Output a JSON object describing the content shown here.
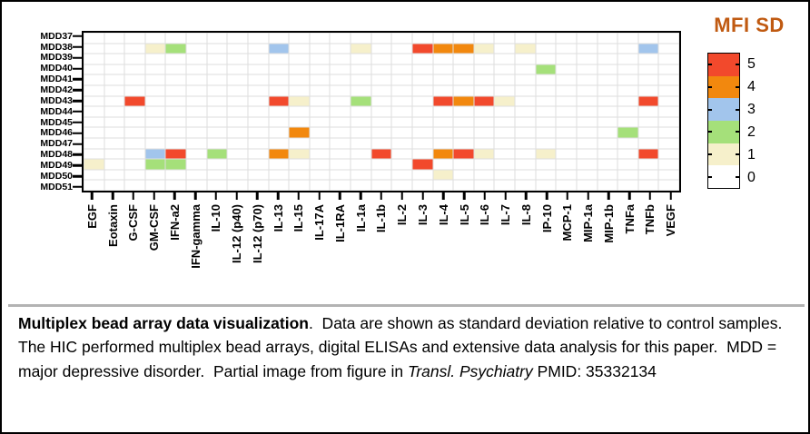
{
  "chart_data": {
    "type": "heatmap",
    "rows": [
      "MDD37",
      "MDD38",
      "MDD39",
      "MDD40",
      "MDD41",
      "MDD42",
      "MDD43",
      "MDD44",
      "MDD45",
      "MDD46",
      "MDD47",
      "MDD48",
      "MDD49",
      "MDD50",
      "MDD51"
    ],
    "columns": [
      "EGF",
      "Eotaxin",
      "G-CSF",
      "GM-CSF",
      "IFN-a2",
      "IFN-gamma",
      "IL-10",
      "IL-12 (p40)",
      "IL-12 (p70)",
      "IL-13",
      "IL-15",
      "IL-17A",
      "IL-1RA",
      "IL-1a",
      "IL-1b",
      "IL-2",
      "IL-3",
      "IL-4",
      "IL-5",
      "IL-6",
      "IL-7",
      "IL-8",
      "IP-10",
      "MCP-1",
      "MIP-1a",
      "MIP-1b",
      "TNFa",
      "TNFb",
      "VEGF"
    ],
    "default_value": 0,
    "cells": [
      {
        "row": "MDD38",
        "col": "GM-CSF",
        "value": 1
      },
      {
        "row": "MDD38",
        "col": "IFN-a2",
        "value": 2
      },
      {
        "row": "MDD38",
        "col": "IL-13",
        "value": 3
      },
      {
        "row": "MDD38",
        "col": "IL-1a",
        "value": 1
      },
      {
        "row": "MDD38",
        "col": "IL-3",
        "value": 5
      },
      {
        "row": "MDD38",
        "col": "IL-4",
        "value": 4
      },
      {
        "row": "MDD38",
        "col": "IL-5",
        "value": 4
      },
      {
        "row": "MDD38",
        "col": "IL-6",
        "value": 1
      },
      {
        "row": "MDD38",
        "col": "IL-8",
        "value": 1
      },
      {
        "row": "MDD38",
        "col": "TNFb",
        "value": 3
      },
      {
        "row": "MDD40",
        "col": "IP-10",
        "value": 2
      },
      {
        "row": "MDD43",
        "col": "G-CSF",
        "value": 5
      },
      {
        "row": "MDD43",
        "col": "IL-13",
        "value": 5
      },
      {
        "row": "MDD43",
        "col": "IL-15",
        "value": 1
      },
      {
        "row": "MDD43",
        "col": "IL-1a",
        "value": 2
      },
      {
        "row": "MDD43",
        "col": "IL-4",
        "value": 5
      },
      {
        "row": "MDD43",
        "col": "IL-5",
        "value": 4
      },
      {
        "row": "MDD43",
        "col": "IL-6",
        "value": 5
      },
      {
        "row": "MDD43",
        "col": "IL-7",
        "value": 1
      },
      {
        "row": "MDD43",
        "col": "TNFb",
        "value": 5
      },
      {
        "row": "MDD46",
        "col": "IL-15",
        "value": 4
      },
      {
        "row": "MDD46",
        "col": "TNFa",
        "value": 2
      },
      {
        "row": "MDD48",
        "col": "GM-CSF",
        "value": 3
      },
      {
        "row": "MDD48",
        "col": "IFN-a2",
        "value": 5
      },
      {
        "row": "MDD48",
        "col": "IL-10",
        "value": 2
      },
      {
        "row": "MDD48",
        "col": "IL-13",
        "value": 4
      },
      {
        "row": "MDD48",
        "col": "IL-15",
        "value": 1
      },
      {
        "row": "MDD48",
        "col": "IL-1b",
        "value": 5
      },
      {
        "row": "MDD48",
        "col": "IL-4",
        "value": 4
      },
      {
        "row": "MDD48",
        "col": "IL-5",
        "value": 5
      },
      {
        "row": "MDD48",
        "col": "IL-6",
        "value": 1
      },
      {
        "row": "MDD48",
        "col": "IP-10",
        "value": 1
      },
      {
        "row": "MDD48",
        "col": "TNFb",
        "value": 5
      },
      {
        "row": "MDD49",
        "col": "EGF",
        "value": 1
      },
      {
        "row": "MDD49",
        "col": "GM-CSF",
        "value": 2
      },
      {
        "row": "MDD49",
        "col": "IFN-a2",
        "value": 2
      },
      {
        "row": "MDD49",
        "col": "IL-3",
        "value": 5
      },
      {
        "row": "MDD50",
        "col": "IL-4",
        "value": 1
      }
    ],
    "legend": {
      "title": "MFI SD",
      "title_color": "#C05A11",
      "levels": [
        "5",
        "4",
        "3",
        "2",
        "1",
        "0"
      ],
      "colors": {
        "0": "#FFFFFF",
        "1": "#F6F0CB",
        "2": "#A5E07A",
        "3": "#A2C5EC",
        "4": "#F2880E",
        "5": "#F2492C"
      }
    }
  },
  "caption": {
    "bold": "Multiplex bead array data visualization",
    "text_1": ".  Data are shown as standard deviation relative to control samples.  The HIC performed multiplex bead arrays, digital ELISAs and extensive data analysis for this paper.  MDD = major depressive disorder.  Partial image from figure in ",
    "italic": "Transl. Psychiatry",
    "text_2": " PMID: 35332134"
  }
}
